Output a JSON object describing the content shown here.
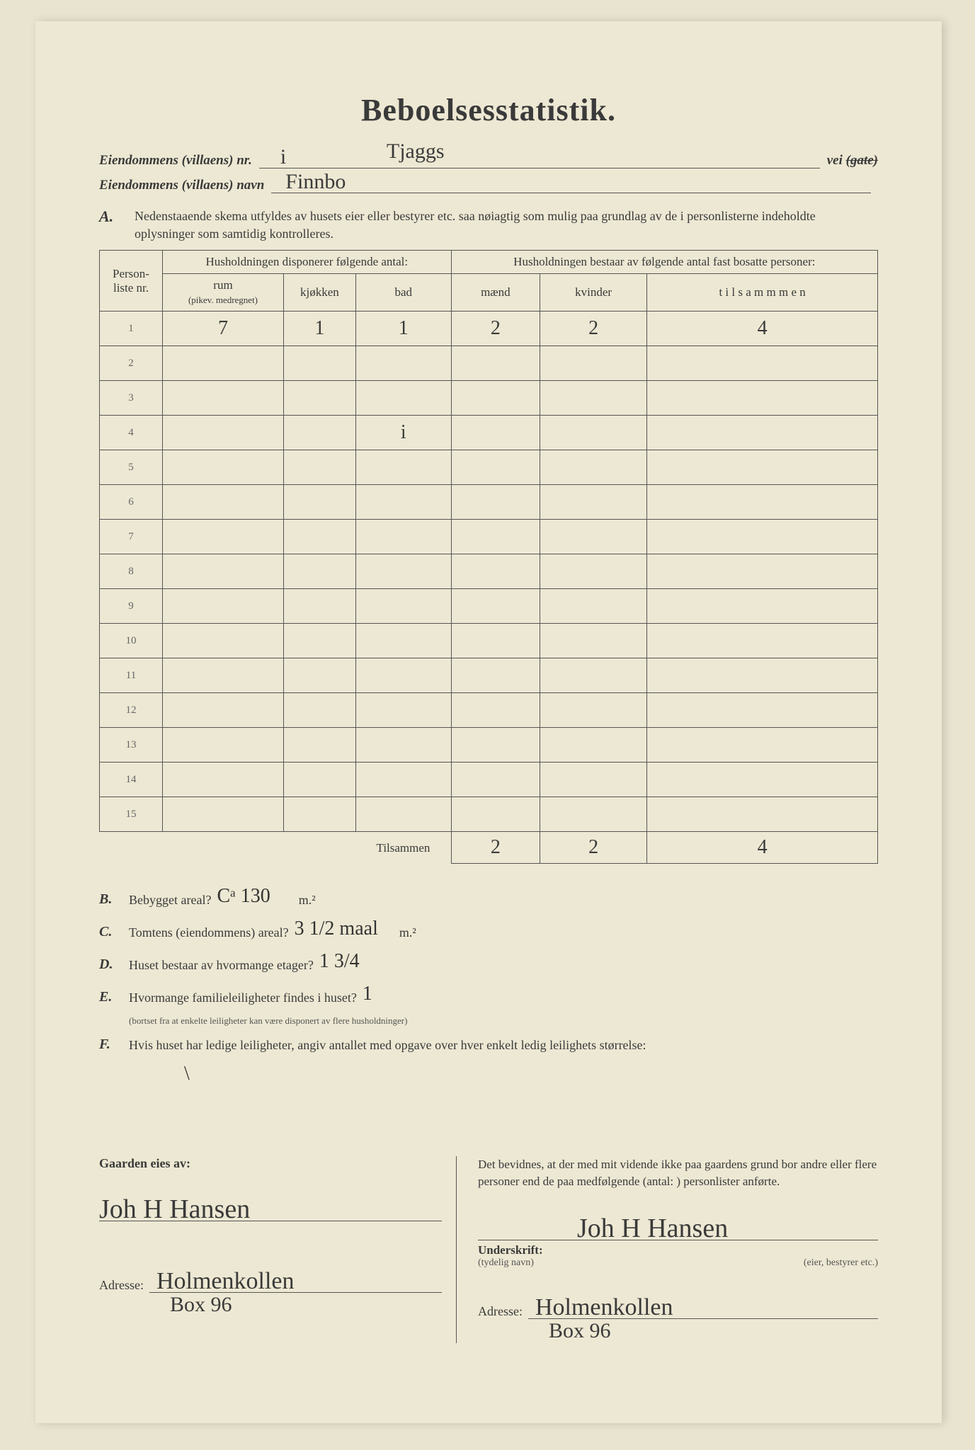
{
  "title": "Beboelsesstatistik.",
  "header": {
    "nr_label": "Eiendommens (villaens) nr.",
    "nr_value_left": "i",
    "nr_value_right": "Tjaggs",
    "vei_label": "vei",
    "gate_struck": "(gate)",
    "navn_label": "Eiendommens (villaens) navn",
    "navn_value": "Finnbo"
  },
  "sectionA": {
    "label": "A.",
    "text": "Nedenstaaende skema utfyldes av husets eier eller bestyrer etc. saa nøiagtig som mulig paa grundlag av de i personlisterne indeholdte oplysninger som samtidig kontrolleres."
  },
  "table": {
    "head": {
      "personliste": "Person-liste nr.",
      "disp": "Husholdningen disponerer følgende antal:",
      "rum": "rum",
      "rum_sub": "(pikev. medregnet)",
      "kjokken": "kjøkken",
      "bad": "bad",
      "faste": "Husholdningen bestaar av følgende antal fast bosatte personer:",
      "maend": "mænd",
      "kvinder": "kvinder",
      "tilsammen": "t i l s a m m m e n"
    },
    "rows": [
      {
        "nr": "1",
        "rum": "7",
        "kjokken": "1",
        "bad": "1",
        "maend": "2",
        "kvinder": "2",
        "tilsammen": "4"
      },
      {
        "nr": "2",
        "rum": "",
        "kjokken": "",
        "bad": "",
        "maend": "",
        "kvinder": "",
        "tilsammen": ""
      },
      {
        "nr": "3",
        "rum": "",
        "kjokken": "",
        "bad": "",
        "maend": "",
        "kvinder": "",
        "tilsammen": ""
      },
      {
        "nr": "4",
        "rum": "",
        "kjokken": "",
        "bad": "i",
        "maend": "",
        "kvinder": "",
        "tilsammen": ""
      },
      {
        "nr": "5",
        "rum": "",
        "kjokken": "",
        "bad": "",
        "maend": "",
        "kvinder": "",
        "tilsammen": ""
      },
      {
        "nr": "6",
        "rum": "",
        "kjokken": "",
        "bad": "",
        "maend": "",
        "kvinder": "",
        "tilsammen": ""
      },
      {
        "nr": "7",
        "rum": "",
        "kjokken": "",
        "bad": "",
        "maend": "",
        "kvinder": "",
        "tilsammen": ""
      },
      {
        "nr": "8",
        "rum": "",
        "kjokken": "",
        "bad": "",
        "maend": "",
        "kvinder": "",
        "tilsammen": ""
      },
      {
        "nr": "9",
        "rum": "",
        "kjokken": "",
        "bad": "",
        "maend": "",
        "kvinder": "",
        "tilsammen": ""
      },
      {
        "nr": "10",
        "rum": "",
        "kjokken": "",
        "bad": "",
        "maend": "",
        "kvinder": "",
        "tilsammen": ""
      },
      {
        "nr": "11",
        "rum": "",
        "kjokken": "",
        "bad": "",
        "maend": "",
        "kvinder": "",
        "tilsammen": ""
      },
      {
        "nr": "12",
        "rum": "",
        "kjokken": "",
        "bad": "",
        "maend": "",
        "kvinder": "",
        "tilsammen": ""
      },
      {
        "nr": "13",
        "rum": "",
        "kjokken": "",
        "bad": "",
        "maend": "",
        "kvinder": "",
        "tilsammen": ""
      },
      {
        "nr": "14",
        "rum": "",
        "kjokken": "",
        "bad": "",
        "maend": "",
        "kvinder": "",
        "tilsammen": ""
      },
      {
        "nr": "15",
        "rum": "",
        "kjokken": "",
        "bad": "",
        "maend": "",
        "kvinder": "",
        "tilsammen": ""
      }
    ],
    "tilsammen_label": "Tilsammen",
    "totals": {
      "maend": "2",
      "kvinder": "2",
      "tilsammen": "4"
    }
  },
  "below": {
    "B": {
      "label": "B.",
      "text": "Bebygget areal?",
      "hand": "Cᵃ 130",
      "unit": "m.²"
    },
    "C": {
      "label": "C.",
      "text": "Tomtens (eiendommens) areal?",
      "hand": "3 1/2 maal",
      "unit": "m.²"
    },
    "D": {
      "label": "D.",
      "text": "Huset bestaar av hvormange etager?",
      "hand": "1 3/4"
    },
    "E": {
      "label": "E.",
      "text": "Hvormange familieleiligheter findes i huset?",
      "hand": "1",
      "fine": "(bortset fra at enkelte leiligheter kan være disponert av flere husholdninger)"
    },
    "F": {
      "label": "F.",
      "text": "Hvis huset har ledige leiligheter, angiv antallet med opgave over hver enkelt ledig leilighets størrelse:",
      "hand": "\\"
    }
  },
  "bottom": {
    "left": {
      "title": "Gaarden eies av:",
      "signature": "Joh H Hansen",
      "addr_label": "Adresse:",
      "addr1": "Holmenkollen",
      "addr2": "Box 96"
    },
    "right": {
      "text": "Det bevidnes, at der med mit vidende ikke paa gaardens grund bor andre eller flere personer end de paa medfølgende (antal:                      ) personlister anførte.",
      "underskrift_label": "Underskrift:",
      "signature": "Joh H Hansen",
      "tydelig": "(tydelig navn)",
      "eier": "(eier, bestyrer etc.)",
      "addr_label": "Adresse:",
      "addr1": "Holmenkollen",
      "addr2": "Box 96"
    }
  },
  "colors": {
    "paper": "#ede8d3",
    "ink": "#3a3a3a",
    "bg": "#e8e4d0"
  }
}
